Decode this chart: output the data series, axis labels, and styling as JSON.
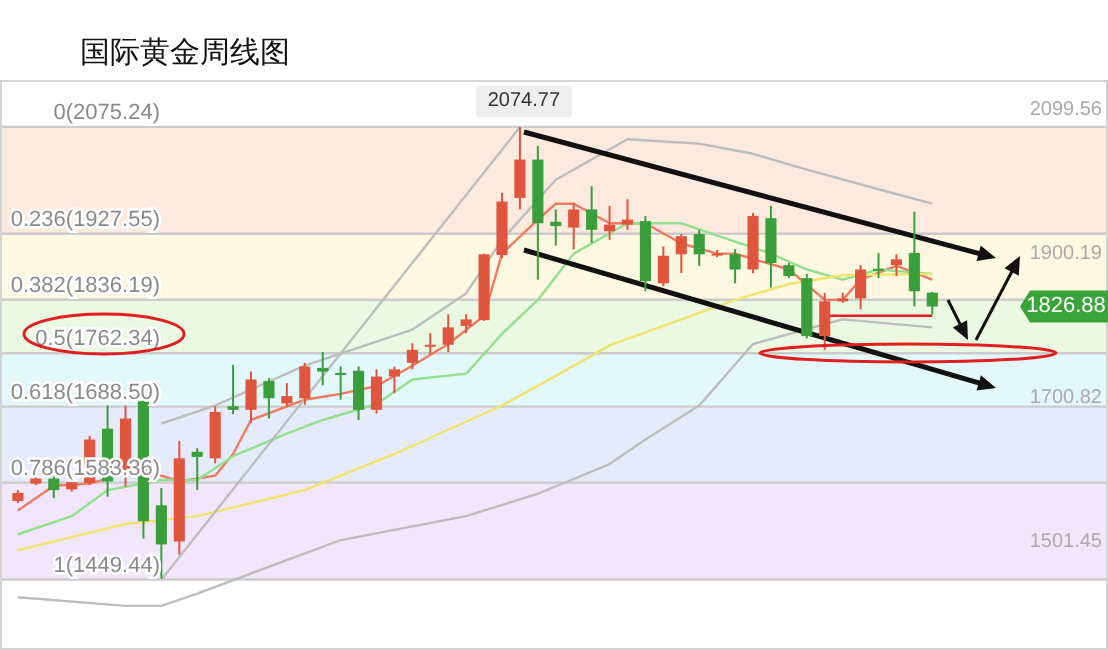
{
  "chart_data": {
    "type": "candlestick",
    "title": "国际黄金周线图",
    "categories": [
      null,
      null,
      null,
      null,
      null,
      null,
      null,
      null,
      null,
      null,
      null,
      null,
      null,
      null,
      null,
      null,
      null,
      null,
      null,
      null,
      null,
      null,
      null,
      null,
      null,
      null,
      null,
      null,
      null,
      null,
      null,
      null,
      null,
      null,
      null,
      null,
      null,
      null,
      null,
      null,
      null,
      null,
      null,
      null,
      null,
      null,
      null,
      null,
      null,
      null,
      null,
      null
    ],
    "ohlc": [
      [
        1558,
        1573,
        1555,
        1569
      ],
      [
        1582,
        1592,
        1580,
        1589
      ],
      [
        1589,
        1592,
        1562,
        1573
      ],
      [
        1574,
        1587,
        1571,
        1584
      ],
      [
        1583,
        1648,
        1580,
        1643
      ],
      [
        1658,
        1690,
        1564,
        1585
      ],
      [
        1592,
        1690,
        1578,
        1672
      ],
      [
        1696,
        1700,
        1506,
        1530
      ],
      [
        1552,
        1576,
        1451,
        1498
      ],
      [
        1502,
        1641,
        1484,
        1617
      ],
      [
        1626,
        1631,
        1573,
        1619
      ],
      [
        1617,
        1689,
        1610,
        1681
      ],
      [
        1689,
        1746,
        1678,
        1684
      ],
      [
        1684,
        1737,
        1666,
        1726
      ],
      [
        1724,
        1728,
        1672,
        1700
      ],
      [
        1693,
        1721,
        1689,
        1703
      ],
      [
        1700,
        1749,
        1691,
        1744
      ],
      [
        1742,
        1764,
        1718,
        1737
      ],
      [
        1735,
        1744,
        1698,
        1734
      ],
      [
        1738,
        1744,
        1670,
        1684
      ],
      [
        1684,
        1740,
        1679,
        1730
      ],
      [
        1730,
        1744,
        1707,
        1740
      ],
      [
        1749,
        1776,
        1740,
        1767
      ],
      [
        1772,
        1790,
        1761,
        1774
      ],
      [
        1774,
        1816,
        1764,
        1798
      ],
      [
        1800,
        1816,
        1790,
        1809
      ],
      [
        1808,
        1900,
        1807,
        1899
      ],
      [
        1898,
        1984,
        1894,
        1972
      ],
      [
        1977,
        2074.77,
        1961,
        2030
      ],
      [
        2030,
        2049,
        1864,
        1942
      ],
      [
        1944,
        1961,
        1911,
        1938
      ],
      [
        1936,
        1970,
        1906,
        1961
      ],
      [
        1961,
        1993,
        1915,
        1933
      ],
      [
        1931,
        1966,
        1919,
        1940
      ],
      [
        1940,
        1975,
        1933,
        1947
      ],
      [
        1945,
        1952,
        1848,
        1862
      ],
      [
        1859,
        1910,
        1855,
        1897
      ],
      [
        1899,
        1927,
        1873,
        1924
      ],
      [
        1927,
        1933,
        1883,
        1899
      ],
      [
        1898,
        1905,
        1895,
        1900
      ],
      [
        1899,
        1906,
        1859,
        1878
      ],
      [
        1878,
        1956,
        1873,
        1952
      ],
      [
        1949,
        1966,
        1853,
        1887
      ],
      [
        1884,
        1887,
        1866,
        1869
      ],
      [
        1866,
        1872,
        1783,
        1786
      ],
      [
        1786,
        1846,
        1767,
        1834
      ],
      [
        1834,
        1846,
        1832,
        1838
      ],
      [
        1838,
        1884,
        1823,
        1878
      ],
      [
        1879,
        1901,
        1866,
        1877
      ],
      [
        1884,
        1899,
        1869,
        1892
      ],
      [
        1901,
        1958,
        1827,
        1848
      ],
      [
        1846,
        1847,
        1816,
        1826.88
      ]
    ],
    "colors": [
      "#e0553d",
      "#e0553d",
      "#3a9e3a",
      "#e0553d",
      "#e0553d",
      "#3a9e3a",
      "#e0553d",
      "#3a9e3a",
      "#3a9e3a",
      "#e0553d",
      "#3a9e3a",
      "#e0553d",
      "#3a9e3a",
      "#e0553d",
      "#3a9e3a",
      "#e0553d",
      "#e0553d",
      "#3a9e3a",
      "#3a9e3a",
      "#3a9e3a",
      "#e0553d",
      "#e0553d",
      "#e0553d",
      "#e0553d",
      "#e0553d",
      "#e0553d",
      "#e0553d",
      "#e0553d",
      "#e0553d",
      "#3a9e3a",
      "#3a9e3a",
      "#e0553d",
      "#3a9e3a",
      "#e0553d",
      "#e0553d",
      "#3a9e3a",
      "#e0553d",
      "#e0553d",
      "#3a9e3a",
      "#e0553d",
      "#3a9e3a",
      "#e0553d",
      "#3a9e3a",
      "#3a9e3a",
      "#3a9e3a",
      "#e0553d",
      "#e0553d",
      "#e0553d",
      "#3a9e3a",
      "#e0553d",
      "#3a9e3a",
      "#3a9e3a"
    ],
    "series": [
      {
        "type": "line",
        "color": "#ee7a62",
        "values": [
          1545,
          null,
          1579,
          null,
          1582,
          null,
          1596,
          null,
          1593,
          1585,
          null,
          1593,
          1623,
          1670,
          null,
          null,
          1698,
          null,
          1706,
          null,
          1717,
          null,
          1745,
          null,
          1775,
          null,
          1814,
          1900,
          null,
          1947,
          1969,
          1969,
          null,
          1942,
          null,
          1942,
          null,
          1914,
          null,
          1900,
          1900,
          null,
          null,
          1878,
          null,
          1836,
          1836,
          1864,
          null,
          1883,
          null,
          1864
        ]
      },
      {
        "type": "line",
        "color": "#93e08f",
        "values": [
          1512,
          null,
          null,
          1537,
          null,
          1573,
          null,
          null,
          1587,
          null,
          1587,
          null,
          1620,
          null,
          null,
          1651,
          null,
          1670,
          null,
          null,
          1692,
          null,
          1726,
          null,
          null,
          1734,
          null,
          1789,
          null,
          1836,
          null,
          1900,
          null,
          null,
          1942,
          null,
          null,
          1942,
          null,
          1925,
          null,
          null,
          1900,
          null,
          1878,
          null,
          1864,
          null,
          1878,
          null,
          null,
          1872
        ]
      },
      {
        "type": "line",
        "color": "#f2e36a",
        "values": [
          1490,
          null,
          null,
          null,
          null,
          null,
          1526,
          null,
          null,
          null,
          1537,
          null,
          null,
          null,
          null,
          null,
          1573,
          null,
          null,
          null,
          null,
          1623,
          null,
          null,
          null,
          null,
          null,
          1690,
          null,
          null,
          1731,
          null,
          null,
          1773,
          null,
          null,
          null,
          1809,
          null,
          null,
          1836,
          null,
          null,
          1858,
          null,
          null,
          1870,
          null,
          null,
          null,
          null,
          1872
        ]
      },
      {
        "type": "line",
        "color": "#bdbdbd",
        "values": [
          null,
          null,
          null,
          null,
          null,
          null,
          null,
          null,
          1665,
          null,
          null,
          1690,
          null,
          null,
          null,
          null,
          1745,
          null,
          null,
          null,
          null,
          null,
          1795,
          null,
          null,
          1845,
          null,
          1919,
          null,
          null,
          2002,
          null,
          null,
          null,
          2058,
          null,
          null,
          null,
          2052,
          null,
          null,
          2038,
          null,
          null,
          2016,
          null,
          null,
          null,
          1989,
          null,
          null,
          1969
        ]
      },
      {
        "type": "line",
        "color": "#bdbdbd",
        "values": [
          1425,
          null,
          null,
          null,
          null,
          null,
          1413,
          null,
          1413,
          null,
          1430,
          null,
          null,
          null,
          null,
          null,
          null,
          null,
          1504,
          null,
          null,
          null,
          null,
          null,
          null,
          1537,
          null,
          null,
          null,
          1568,
          null,
          null,
          null,
          1609,
          null,
          1643,
          null,
          null,
          1690,
          null,
          null,
          1775,
          null,
          null,
          null,
          null,
          1809,
          null,
          null,
          null,
          null,
          1798
        ]
      },
      {
        "type": "line",
        "color": "#e02020",
        "values": [
          null,
          null,
          null,
          null,
          null,
          null,
          null,
          null,
          null,
          null,
          null,
          null,
          null,
          null,
          null,
          null,
          null,
          null,
          null,
          null,
          null,
          null,
          null,
          null,
          null,
          null,
          null,
          null,
          null,
          null,
          null,
          null,
          null,
          null,
          null,
          null,
          null,
          null,
          null,
          null,
          null,
          null,
          null,
          null,
          null,
          1814,
          1814,
          1814,
          1814,
          1814,
          1814,
          1814
        ]
      },
      {
        "type": "line",
        "color": "#bdbdbd",
        "values": [
          null,
          null,
          null,
          null,
          null,
          null,
          null,
          null,
          1449,
          null,
          null,
          null,
          null,
          null,
          null,
          null,
          null,
          null,
          null,
          null,
          null,
          null,
          null,
          null,
          null,
          null,
          null,
          null,
          2075,
          null,
          null,
          null,
          null,
          null,
          null,
          null,
          null,
          null,
          null,
          null,
          null,
          null,
          null,
          null,
          null,
          null,
          null,
          null,
          null,
          null,
          null,
          null
        ]
      }
    ],
    "ylim": [
      1352,
      2140
    ],
    "yticks": [
      1501.45,
      1700.82,
      1900.19,
      2099.56
    ],
    "tick_labels": "y",
    "ref_lines": [
      {
        "axis": "y",
        "value": 2075.24,
        "label": "0(2075.24)",
        "color": "#cccccc"
      },
      {
        "axis": "y",
        "value": 1927.55,
        "label": "0.236(1927.55)",
        "color": "#cccccc"
      },
      {
        "axis": "y",
        "value": 1836.19,
        "label": "0.382(1836.19)",
        "color": "#cccccc"
      },
      {
        "axis": "y",
        "value": 1762.34,
        "label": "0.5(1762.34)",
        "color": "#cccccc"
      },
      {
        "axis": "y",
        "value": 1688.5,
        "label": "0.618(1688.50)",
        "color": "#cccccc"
      },
      {
        "axis": "y",
        "value": 1583.36,
        "label": "0.786(1583.36)",
        "color": "#cccccc"
      },
      {
        "axis": "y",
        "value": 1449.44,
        "label": "1(1449.44)",
        "color": "#cccccc"
      }
    ],
    "bands": [
      {
        "axis": "y",
        "from": 1927.55,
        "to": 2075.24,
        "color": "#fdeadf"
      },
      {
        "axis": "y",
        "from": 1836.19,
        "to": 1927.55,
        "color": "#fdf8e2"
      },
      {
        "axis": "y",
        "from": 1762.34,
        "to": 1836.19,
        "color": "#ebf8e2"
      },
      {
        "axis": "y",
        "from": 1688.5,
        "to": 1762.34,
        "color": "#e2f8fb"
      },
      {
        "axis": "y",
        "from": 1583.36,
        "to": 1688.5,
        "color": "#e6ebfb"
      },
      {
        "axis": "y",
        "from": 1449.44,
        "to": 1583.36,
        "color": "#f2e6fc"
      }
    ],
    "annotations": [
      {
        "text": "2074.77",
        "y": 2074.77
      },
      {
        "text": "1826.88",
        "y": 1826.88
      }
    ]
  }
}
